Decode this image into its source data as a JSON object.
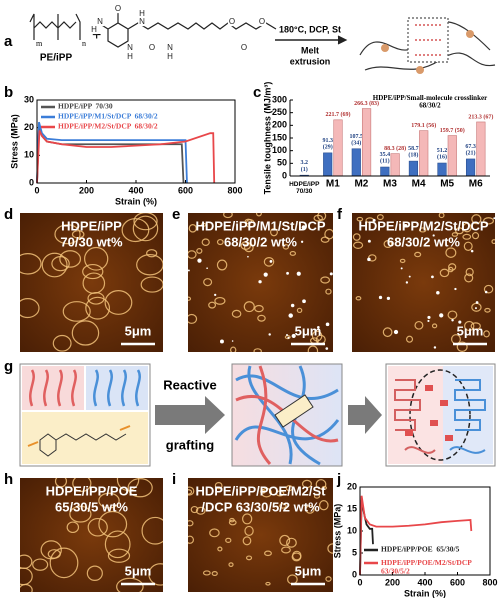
{
  "panel_labels": [
    "a",
    "b",
    "c",
    "d",
    "e",
    "f",
    "g",
    "h",
    "i",
    "j"
  ],
  "scheme_a": {
    "reactant": "PE/iPP",
    "sub_m": "m",
    "sub_n": "n",
    "plus": "+",
    "conditions": "180°C, DCP, St",
    "process": [
      "Melt",
      "extrusion"
    ],
    "atoms": [
      "O",
      "N",
      "H",
      "N",
      "H",
      "N",
      "H",
      "O",
      "N",
      "H",
      "O",
      "O",
      "O"
    ]
  },
  "micrographs": [
    {
      "caption": [
        "HDPE/iPP",
        "70/30 wt%"
      ],
      "scale": "5μm"
    },
    {
      "caption": [
        "HDPE/iPP/M1/St/DCP",
        "68/30/2 wt%"
      ],
      "scale": "5μm"
    },
    {
      "caption": [
        "HDPE/iPP/M2/St/DCP",
        "68/30/2 wt%"
      ],
      "scale": "5μm"
    },
    {
      "caption": [
        "HDPE/iPP/POE",
        "65/30/5 wt%"
      ],
      "scale": "5μm"
    },
    {
      "caption": [
        "HDPE/iPP/POE/M2/St",
        "/DCP 63/30/5/2 wt%"
      ],
      "scale": "5μm"
    }
  ],
  "scheme_g": {
    "step": [
      "Reactive",
      "grafting"
    ]
  },
  "chart_data": [
    {
      "type": "line",
      "xlabel": "Strain (%)",
      "ylabel": "Stress (MPa)",
      "xlim": [
        0,
        800
      ],
      "xticks": [
        0,
        200,
        400,
        600,
        800
      ],
      "ylim": [
        0,
        30
      ],
      "yticks": [
        0,
        10,
        20,
        30
      ],
      "grid": false,
      "legend": "upper left",
      "series": [
        {
          "name": "HDPE/iPP  70/30",
          "color": "#555555",
          "x": [
            0,
            8,
            20,
            40,
            100,
            200,
            300,
            400,
            500,
            585,
            592
          ],
          "values": [
            0,
            20,
            17,
            15,
            14,
            14,
            14,
            14,
            14,
            14,
            0
          ]
        },
        {
          "name": "HDPE/iPP/M1/St/DCP  68/30/2",
          "color": "#3b7dd8",
          "x": [
            0,
            8,
            20,
            40,
            100,
            200,
            300,
            400,
            500,
            600,
            606
          ],
          "values": [
            0,
            22,
            18,
            16,
            15.5,
            15.5,
            15.5,
            15.5,
            15.5,
            15.5,
            0
          ]
        },
        {
          "name": "HDPE/iPP/M2/St/DCP  68/30/2",
          "color": "#e8474a",
          "x": [
            0,
            10,
            20,
            40,
            100,
            200,
            300,
            400,
            500,
            600,
            700,
            712,
            716
          ],
          "values": [
            0,
            19,
            17,
            15,
            14,
            13,
            13,
            13.5,
            14,
            15,
            18,
            18,
            0
          ]
        }
      ]
    },
    {
      "type": "bar",
      "title": "HDPE/iPP/Small-molecule crosslinker 68/30/2",
      "ylabel": "Tensile toughness (MJ/m³)",
      "categories": [
        "HDPE/iPP 70/30",
        "M1",
        "M2",
        "M3",
        "M4",
        "M5",
        "M6"
      ],
      "ylim": [
        0,
        300
      ],
      "yticks": [
        0,
        50,
        100,
        150,
        200,
        250,
        300
      ],
      "grid": false,
      "series": [
        {
          "color": "#3f6fc0",
          "values": [
            3.2,
            91.3,
            107.5,
            35.4,
            58.7,
            51.2,
            67.3
          ],
          "value_labels": [
            "3.2 (1)",
            "91.3 (29)",
            "107.5 (34)",
            "35.4 (11)",
            "58.7 (18)",
            "51.2 (16)",
            "67.3 (21)"
          ]
        },
        {
          "color": "#f4b8b8",
          "values": [
            null,
            221.7,
            266.3,
            88.3,
            179.1,
            159.7,
            213.3
          ],
          "value_labels": [
            null,
            "221.7 (69)",
            "266.3 (83)",
            "88.3 (28)",
            "179.1 (56)",
            "159.7 (50)",
            "213.3 (67)"
          ]
        }
      ]
    },
    {
      "type": "line",
      "xlabel": "Strain (%)",
      "ylabel": "Stress (MPa)",
      "xlim": [
        0,
        800
      ],
      "xticks": [
        0,
        200,
        400,
        600,
        800
      ],
      "ylim": [
        0,
        20
      ],
      "yticks": [
        0,
        5,
        10,
        15,
        20
      ],
      "grid": false,
      "legend": "lower left",
      "series": [
        {
          "name": "HDPE/iPP/POE  65/30/5",
          "color": "#222222",
          "x": [
            0,
            10,
            25,
            40,
            60,
            75,
            80
          ],
          "values": [
            0,
            17,
            14,
            11.5,
            10.5,
            10.5,
            7
          ]
        },
        {
          "name": "HDPE/iPP/POE/M2/St/DCP 63/30/5/2",
          "color": "#e8474a",
          "x": [
            0,
            10,
            30,
            60,
            100,
            200,
            300,
            400,
            500,
            600,
            680,
            685
          ],
          "values": [
            0,
            18,
            13,
            11.5,
            11,
            11,
            11.2,
            11.5,
            12,
            12.3,
            12.5,
            10
          ]
        }
      ]
    }
  ]
}
